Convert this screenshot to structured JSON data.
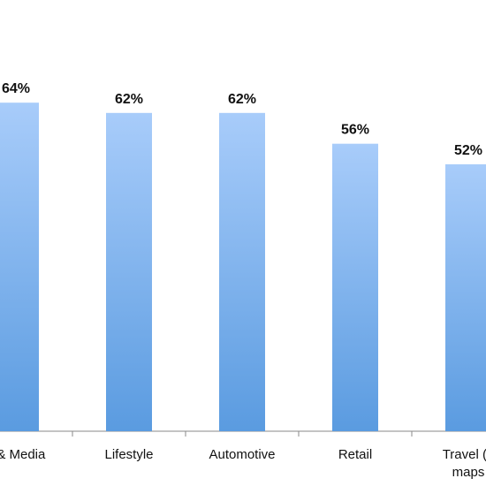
{
  "chart_data": {
    "type": "bar",
    "title": "",
    "xlabel": "",
    "ylabel": "",
    "categories": [
      "s & Media",
      "Lifestyle",
      "Automotive",
      "Retail",
      "Travel (n\nmaps"
    ],
    "series": [
      {
        "values": [
          64,
          62,
          62,
          56,
          52
        ],
        "data_labels": [
          "64%",
          "62%",
          "62%",
          "56%",
          "52%"
        ]
      }
    ],
    "ylim": [
      0,
      84
    ],
    "grid": false,
    "legend": "none",
    "colors": {
      "bar_top": "#A8CCFA",
      "bar_bottom": "#5A9BE0",
      "axis": "#8a8a8a"
    }
  }
}
